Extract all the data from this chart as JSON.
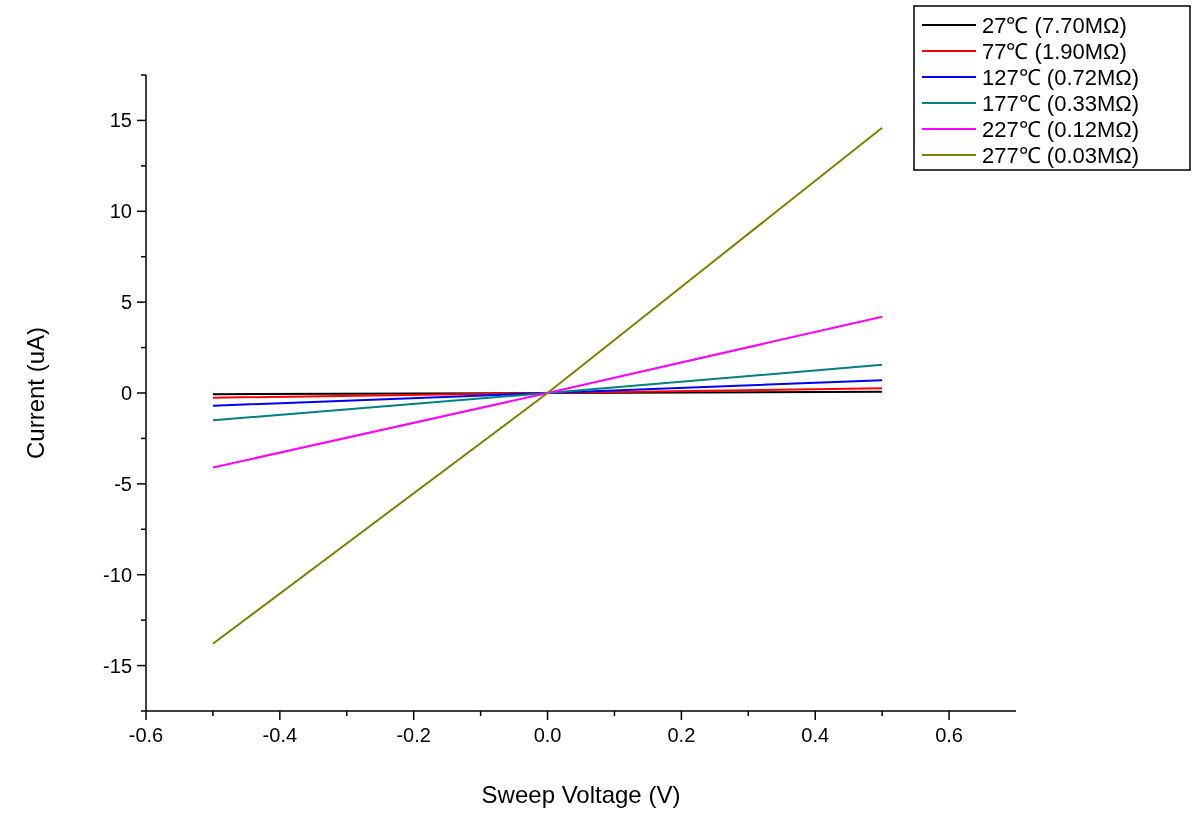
{
  "chart_data": {
    "type": "line",
    "xlabel": "Sweep Voltage (V)",
    "ylabel": "Current (uA)",
    "x": [
      -0.5,
      0,
      0.5
    ],
    "series": [
      {
        "name": "27℃ (7.70MΩ)",
        "color": "#000000",
        "values": [
          -0.07,
          0,
          0.07
        ]
      },
      {
        "name": "77℃ (1.90MΩ)",
        "color": "#ff0000",
        "values": [
          -0.26,
          0,
          0.26
        ]
      },
      {
        "name": "127℃ (0.72MΩ)",
        "color": "#0000ff",
        "values": [
          -0.7,
          0,
          0.7
        ]
      },
      {
        "name": "177℃ (0.33MΩ)",
        "color": "#008080",
        "values": [
          -1.5,
          0,
          1.55
        ]
      },
      {
        "name": "227℃ (0.12MΩ)",
        "color": "#ff00ff",
        "values": [
          -4.1,
          0,
          4.2
        ]
      },
      {
        "name": "277℃ (0.03MΩ)",
        "color": "#808000",
        "values": [
          -13.8,
          0,
          14.6
        ]
      }
    ],
    "xlim": [
      -0.6,
      0.7
    ],
    "xticks": [
      -0.6,
      {
        "value": -0.5,
        "label": null
      },
      "-0.4",
      {
        "value": -0.3,
        "label": null
      },
      -0.2,
      {
        "value": -0.1,
        "label": null
      },
      {
        "value": 0,
        "label": "0.0"
      },
      {
        "value": 0.1,
        "label": null
      },
      0.2,
      {
        "value": 0.3,
        "label": null
      },
      0.4,
      {
        "value": 0.5,
        "label": null
      },
      0.6
    ],
    "ylim": [
      -17.5,
      17.5
    ],
    "yticks": [
      {
        "value": -17.5,
        "label": null
      },
      -15,
      {
        "value": -12.5,
        "label": null
      },
      -10,
      {
        "value": -7.5,
        "label": null
      },
      -5,
      {
        "value": -2.5,
        "label": null
      },
      0,
      {
        "value": 2.5,
        "label": null
      },
      5,
      {
        "value": 7.5,
        "label": null
      },
      10,
      {
        "value": 12.5,
        "label": null
      },
      15,
      {
        "value": 17.5,
        "label": null
      }
    ],
    "legend": "top right",
    "grid": false,
    "marker": "none",
    "line_style": "solid"
  }
}
